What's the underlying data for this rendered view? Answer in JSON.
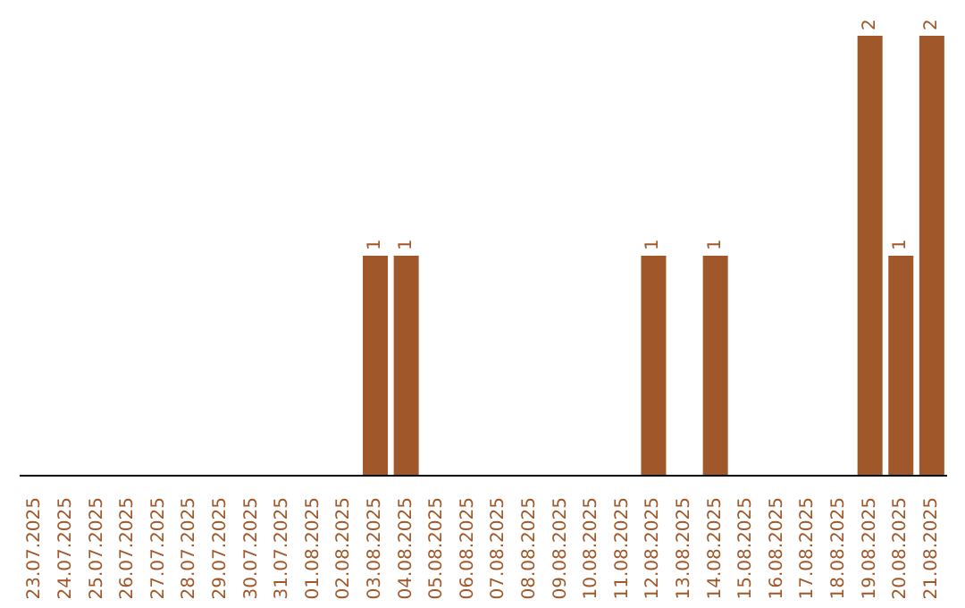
{
  "chart_data": {
    "type": "bar",
    "categories": [
      "23.07.2025",
      "24.07.2025",
      "25.07.2025",
      "26.07.2025",
      "27.07.2025",
      "28.07.2025",
      "29.07.2025",
      "30.07.2025",
      "31.07.2025",
      "01.08.2025",
      "02.08.2025",
      "03.08.2025",
      "04.08.2025",
      "05.08.2025",
      "06.08.2025",
      "07.08.2025",
      "08.08.2025",
      "09.08.2025",
      "10.08.2025",
      "11.08.2025",
      "12.08.2025",
      "13.08.2025",
      "14.08.2025",
      "15.08.2025",
      "16.08.2025",
      "17.08.2025",
      "18.08.2025",
      "19.08.2025",
      "20.08.2025",
      "21.08.2025"
    ],
    "values": [
      0,
      0,
      0,
      0,
      0,
      0,
      0,
      0,
      0,
      0,
      0,
      1,
      1,
      0,
      0,
      0,
      0,
      0,
      0,
      0,
      1,
      0,
      1,
      0,
      0,
      0,
      0,
      2,
      1,
      2
    ],
    "value_labels": [
      null,
      null,
      null,
      null,
      null,
      null,
      null,
      null,
      null,
      null,
      null,
      "1",
      "1",
      null,
      null,
      null,
      null,
      null,
      null,
      null,
      "1",
      null,
      "1",
      null,
      null,
      null,
      null,
      "2",
      "1",
      "2"
    ],
    "color": "#a0582a"
  }
}
